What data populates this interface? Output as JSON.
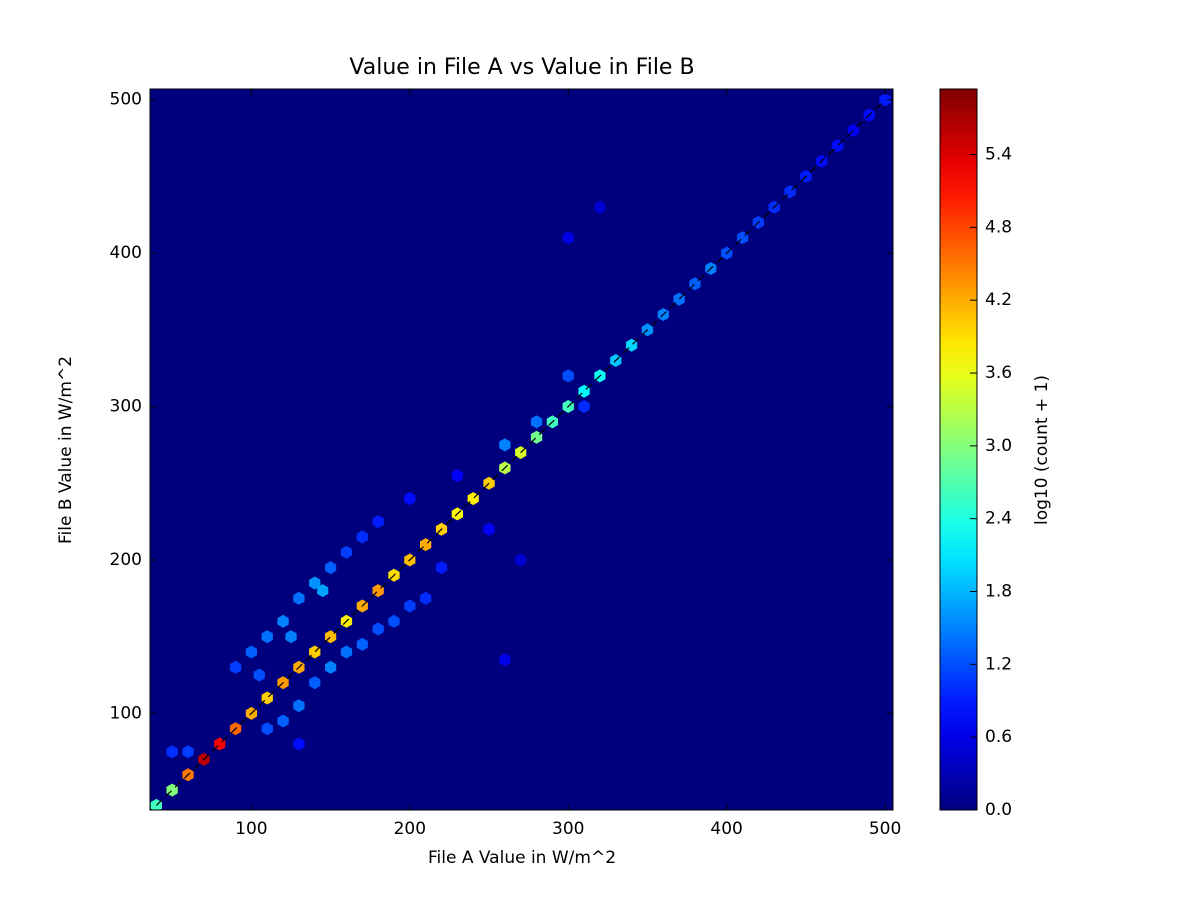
{
  "chart_data": {
    "type": "hexbin",
    "title": "Value in File A vs Value in File B",
    "xlabel": "File A Value in W/m^2",
    "ylabel": "File B Value in W/m^2",
    "colorbar_label": "log10 (count + 1)",
    "colormap": "jet",
    "background_color": "#00007f",
    "xlim": [
      36,
      505
    ],
    "ylim": [
      37,
      507
    ],
    "xticks": [
      100,
      200,
      300,
      400,
      500
    ],
    "yticks": [
      100,
      200,
      300,
      400,
      500
    ],
    "clim": [
      0,
      5.94
    ],
    "cticks": [
      {
        "value": 0,
        "label": "0.0"
      },
      {
        "value": 0.6,
        "label": "0.6"
      },
      {
        "value": 1.2,
        "label": "1.2"
      },
      {
        "value": 1.8,
        "label": "1.8"
      },
      {
        "value": 2.4,
        "label": "2.4"
      },
      {
        "value": 3.0,
        "label": "3.0"
      },
      {
        "value": 3.6,
        "label": "3.6"
      },
      {
        "value": 4.2,
        "label": "4.2"
      },
      {
        "value": 4.8,
        "label": "4.8"
      },
      {
        "value": 5.4,
        "label": "5.4"
      }
    ],
    "x": [
      40,
      50,
      60,
      70,
      80,
      90,
      100,
      110,
      120,
      130,
      140,
      150,
      160,
      170,
      180,
      190,
      200,
      210,
      220,
      230,
      240,
      250,
      260,
      270,
      280,
      290,
      300,
      310,
      320,
      330,
      340,
      350,
      360,
      370,
      380,
      390,
      400,
      410,
      420,
      430,
      440,
      450,
      460,
      470,
      480,
      490,
      500,
      90,
      100,
      110,
      120,
      130,
      140,
      150,
      160,
      170,
      105,
      125,
      145,
      180,
      200,
      230,
      300,
      310,
      280,
      260,
      50,
      60,
      110,
      120,
      130,
      140,
      150,
      160,
      170,
      180,
      190,
      200,
      210,
      220,
      130,
      250,
      260,
      300,
      320,
      270
    ],
    "y": [
      40,
      50,
      60,
      70,
      80,
      90,
      100,
      110,
      120,
      130,
      140,
      150,
      160,
      170,
      180,
      190,
      200,
      210,
      220,
      230,
      240,
      250,
      260,
      270,
      280,
      290,
      300,
      310,
      320,
      330,
      340,
      350,
      360,
      370,
      380,
      390,
      400,
      410,
      420,
      430,
      440,
      450,
      460,
      470,
      480,
      490,
      500,
      130,
      140,
      150,
      160,
      175,
      185,
      195,
      205,
      215,
      125,
      150,
      180,
      225,
      240,
      255,
      320,
      300,
      290,
      275,
      75,
      75,
      90,
      95,
      105,
      120,
      130,
      140,
      145,
      155,
      160,
      170,
      175,
      195,
      80,
      220,
      135,
      410,
      430,
      200
    ],
    "values": [
      2.6,
      3.0,
      4.5,
      5.6,
      5.2,
      4.6,
      4.2,
      4.0,
      4.3,
      4.2,
      4.0,
      4.1,
      3.8,
      4.2,
      4.3,
      3.9,
      4.1,
      4.2,
      4.0,
      3.7,
      3.8,
      4.0,
      3.3,
      3.5,
      2.9,
      2.6,
      2.6,
      2.2,
      2.3,
      1.9,
      2.0,
      1.6,
      1.5,
      1.4,
      1.3,
      1.5,
      1.2,
      1.2,
      1.1,
      1.0,
      1.0,
      0.9,
      0.8,
      0.8,
      0.7,
      0.8,
      0.9,
      1.1,
      1.3,
      1.4,
      1.5,
      1.4,
      1.6,
      1.3,
      1.1,
      1.0,
      1.2,
      1.5,
      1.7,
      0.9,
      0.8,
      0.7,
      1.2,
      1.0,
      1.4,
      1.5,
      1.0,
      1.1,
      1.2,
      1.3,
      1.4,
      1.3,
      1.5,
      1.4,
      1.3,
      1.2,
      1.2,
      1.1,
      1.0,
      0.9,
      0.8,
      0.7,
      0.6,
      0.6,
      0.5,
      0.5
    ],
    "reference_line": {
      "x": [
        40,
        500
      ],
      "y": [
        40,
        500
      ]
    }
  }
}
